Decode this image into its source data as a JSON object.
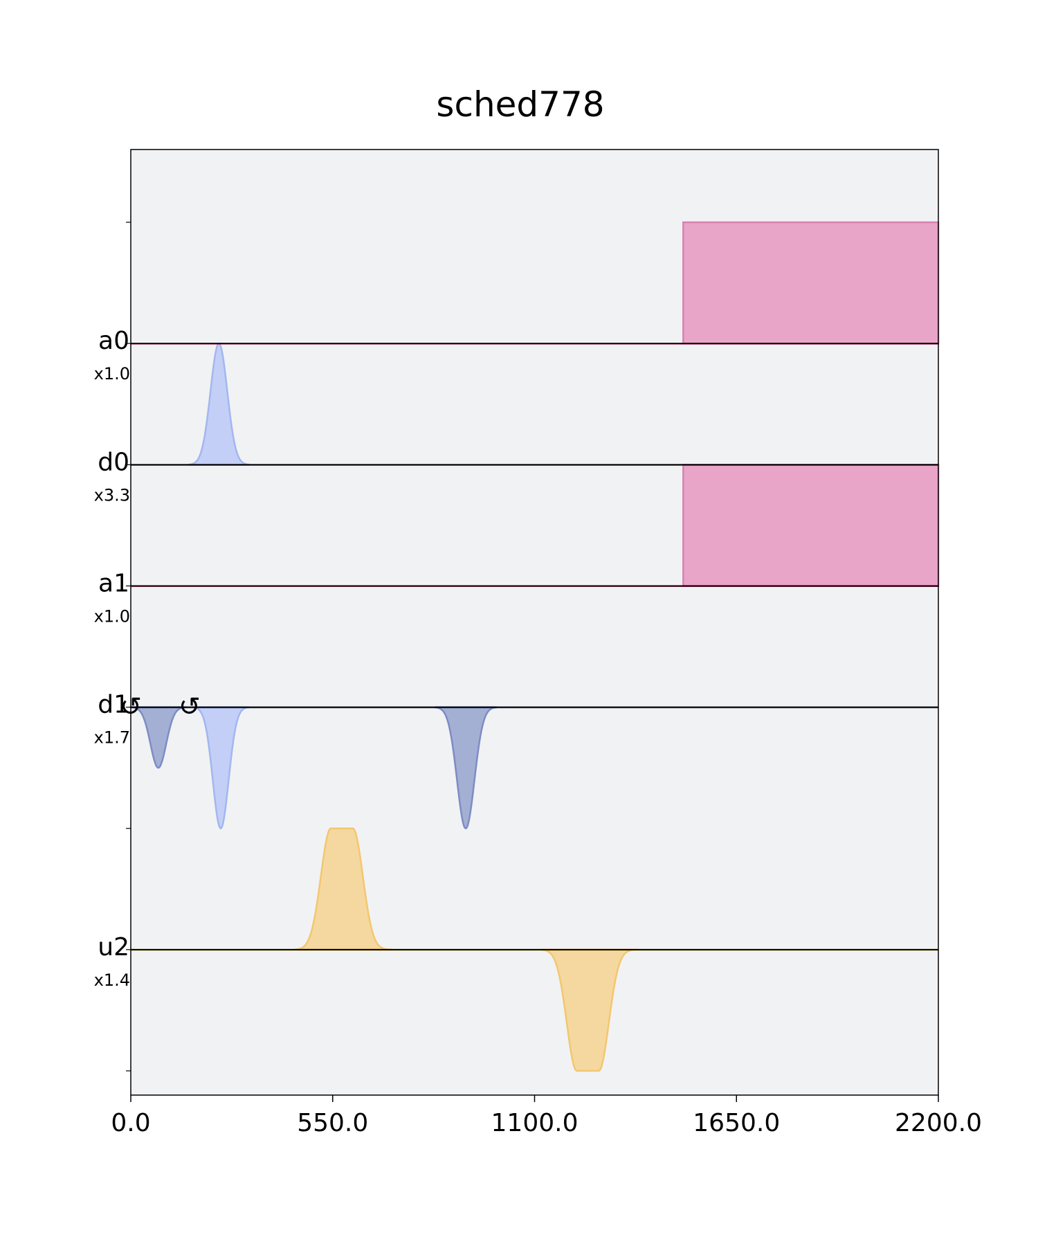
{
  "chart_data": {
    "type": "pulse-schedule",
    "title": "sched778",
    "xlim": [
      0,
      2200
    ],
    "x_ticks": [
      "0.0",
      "550.0",
      "1100.0",
      "1650.0",
      "2200.0"
    ],
    "x_tick_values": [
      0,
      550,
      1100,
      1650,
      2200
    ],
    "ylim": [
      -7.2,
      0.6
    ],
    "grid": false,
    "colors": {
      "background": "#f1f2f4",
      "acquire_fill": "#e8a5c8",
      "acquire_edge": "#d980b2",
      "drive_fill": "#c3cff6",
      "drive_edge": "#a3b6ef",
      "drive_dark_fill": "#a4afd4",
      "drive_dark_edge": "#7d8cc3",
      "control_fill": "#f5d8a0",
      "control_edge": "#f2c76e",
      "baseline": "#000000",
      "acquire_baseline": "#ff0066",
      "drive_baseline": "#1f2d6b",
      "control_baseline": "#c9a100"
    },
    "channels": [
      {
        "name": "a0",
        "scale": "x1.0",
        "baseline": -1.0,
        "type": "acquire"
      },
      {
        "name": "d0",
        "scale": "x3.3",
        "baseline": -2.0,
        "type": "drive"
      },
      {
        "name": "a1",
        "scale": "x1.0",
        "baseline": -3.0,
        "type": "acquire"
      },
      {
        "name": "d1",
        "scale": "x1.7",
        "baseline": -4.0,
        "type": "drive"
      },
      {
        "name": "u2",
        "scale": "x1.4",
        "baseline": -6.0,
        "type": "control"
      }
    ],
    "pulses": [
      {
        "channel": "a0",
        "shape": "box",
        "t0": 1505,
        "t1": 2200,
        "amp": 1.0,
        "color": "acquire"
      },
      {
        "channel": "d0",
        "shape": "gauss",
        "t0": 160,
        "t1": 320,
        "amp": 1.0,
        "color": "drive"
      },
      {
        "channel": "a1",
        "shape": "box",
        "t0": 1505,
        "t1": 2200,
        "amp": 1.0,
        "color": "acquire"
      },
      {
        "channel": "d1",
        "shape": "gauss",
        "t0": 0,
        "t1": 150,
        "amp": -0.5,
        "color": "drive_dark"
      },
      {
        "channel": "d1",
        "shape": "gauss",
        "t0": 170,
        "t1": 320,
        "amp": -1.0,
        "color": "drive"
      },
      {
        "channel": "d1",
        "shape": "gauss",
        "t0": 830,
        "t1": 995,
        "amp": -1.0,
        "color": "drive_dark"
      },
      {
        "channel": "u2",
        "shape": "gauss_square",
        "t0": 450,
        "t1": 710,
        "flat0": 545,
        "flat1": 605,
        "amp": 1.0,
        "color": "control"
      },
      {
        "channel": "u2",
        "shape": "gauss_square",
        "t0": 1120,
        "t1": 1380,
        "flat0": 1215,
        "flat1": 1275,
        "amp": -1.0,
        "color": "control"
      }
    ],
    "phase_markers": [
      {
        "channel": "d1",
        "t": 0,
        "symbol": "↺"
      },
      {
        "channel": "d1",
        "t": 160,
        "symbol": "↺"
      }
    ]
  }
}
